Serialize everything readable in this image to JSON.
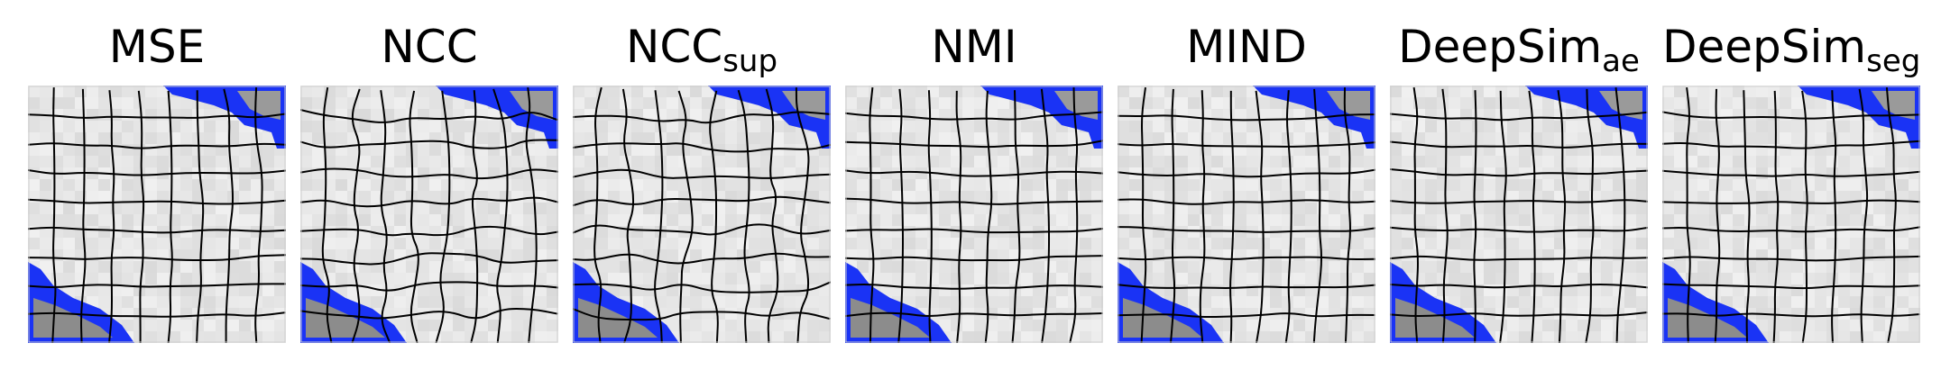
{
  "panels": [
    {
      "title": "MSE",
      "sub": "",
      "grid": "smooth"
    },
    {
      "title": "NCC",
      "sub": "",
      "grid": "wavy"
    },
    {
      "title": "NCC",
      "sub": "sup",
      "grid": "wavy"
    },
    {
      "title": "NMI",
      "sub": "",
      "grid": "smooth"
    },
    {
      "title": "MIND",
      "sub": "",
      "grid": "smooth"
    },
    {
      "title": "DeepSim",
      "sub": "ae",
      "grid": "smooth"
    },
    {
      "title": "DeepSim",
      "sub": "seg",
      "grid": "smooth"
    }
  ],
  "colors": {
    "overlay": "#1a33f5",
    "grid": "#000000",
    "tissue_light": "#e6e6e6",
    "tissue_dark": "#777777"
  }
}
